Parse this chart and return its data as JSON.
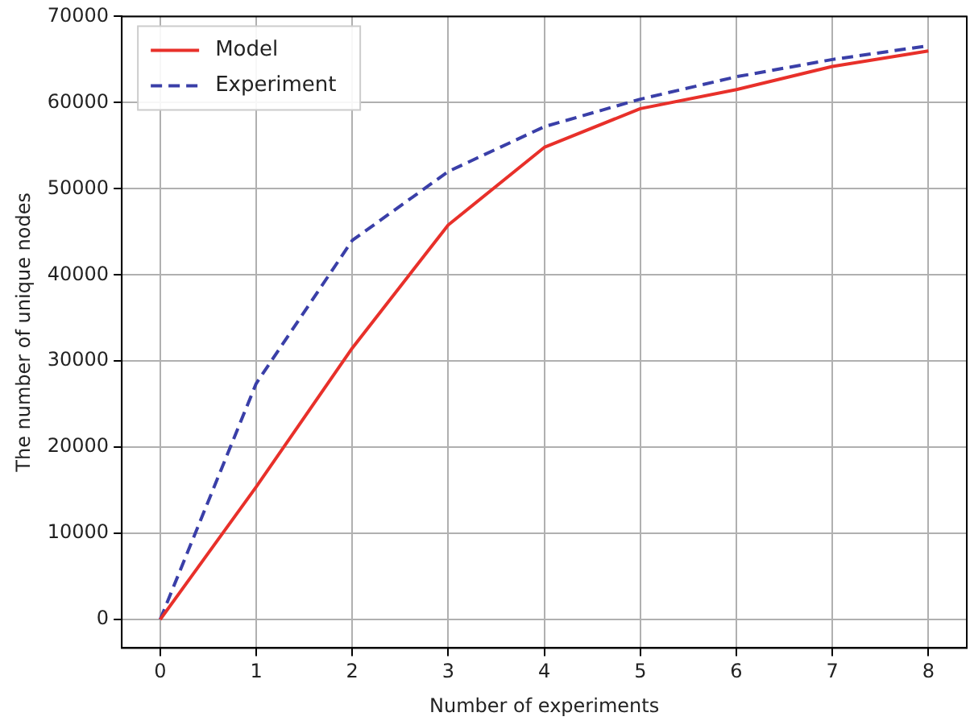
{
  "chart_data": {
    "type": "line",
    "xlabel": "Number of experiments",
    "ylabel": "The number of unique nodes",
    "x": [
      0,
      1,
      2,
      3,
      4,
      5,
      6,
      7,
      8
    ],
    "series": [
      {
        "name": "Model",
        "color": "#e8302a",
        "line_style": "solid",
        "values": [
          0,
          15400,
          31500,
          45800,
          54800,
          59300,
          61500,
          64200,
          66000
        ]
      },
      {
        "name": "Experiment",
        "color": "#3a3fa8",
        "line_style": "dashed",
        "values": [
          0,
          27400,
          44000,
          52000,
          57200,
          60400,
          63000,
          65000,
          66600
        ]
      }
    ],
    "xlim": [
      -0.4,
      8.4
    ],
    "xticks": [
      0,
      1,
      2,
      3,
      4,
      5,
      6,
      7,
      8
    ],
    "ylim": [
      -3300,
      70000
    ],
    "yticks": [
      0,
      10000,
      20000,
      30000,
      40000,
      50000,
      60000,
      70000
    ],
    "grid": true,
    "legend": "top left",
    "marker": "none"
  }
}
